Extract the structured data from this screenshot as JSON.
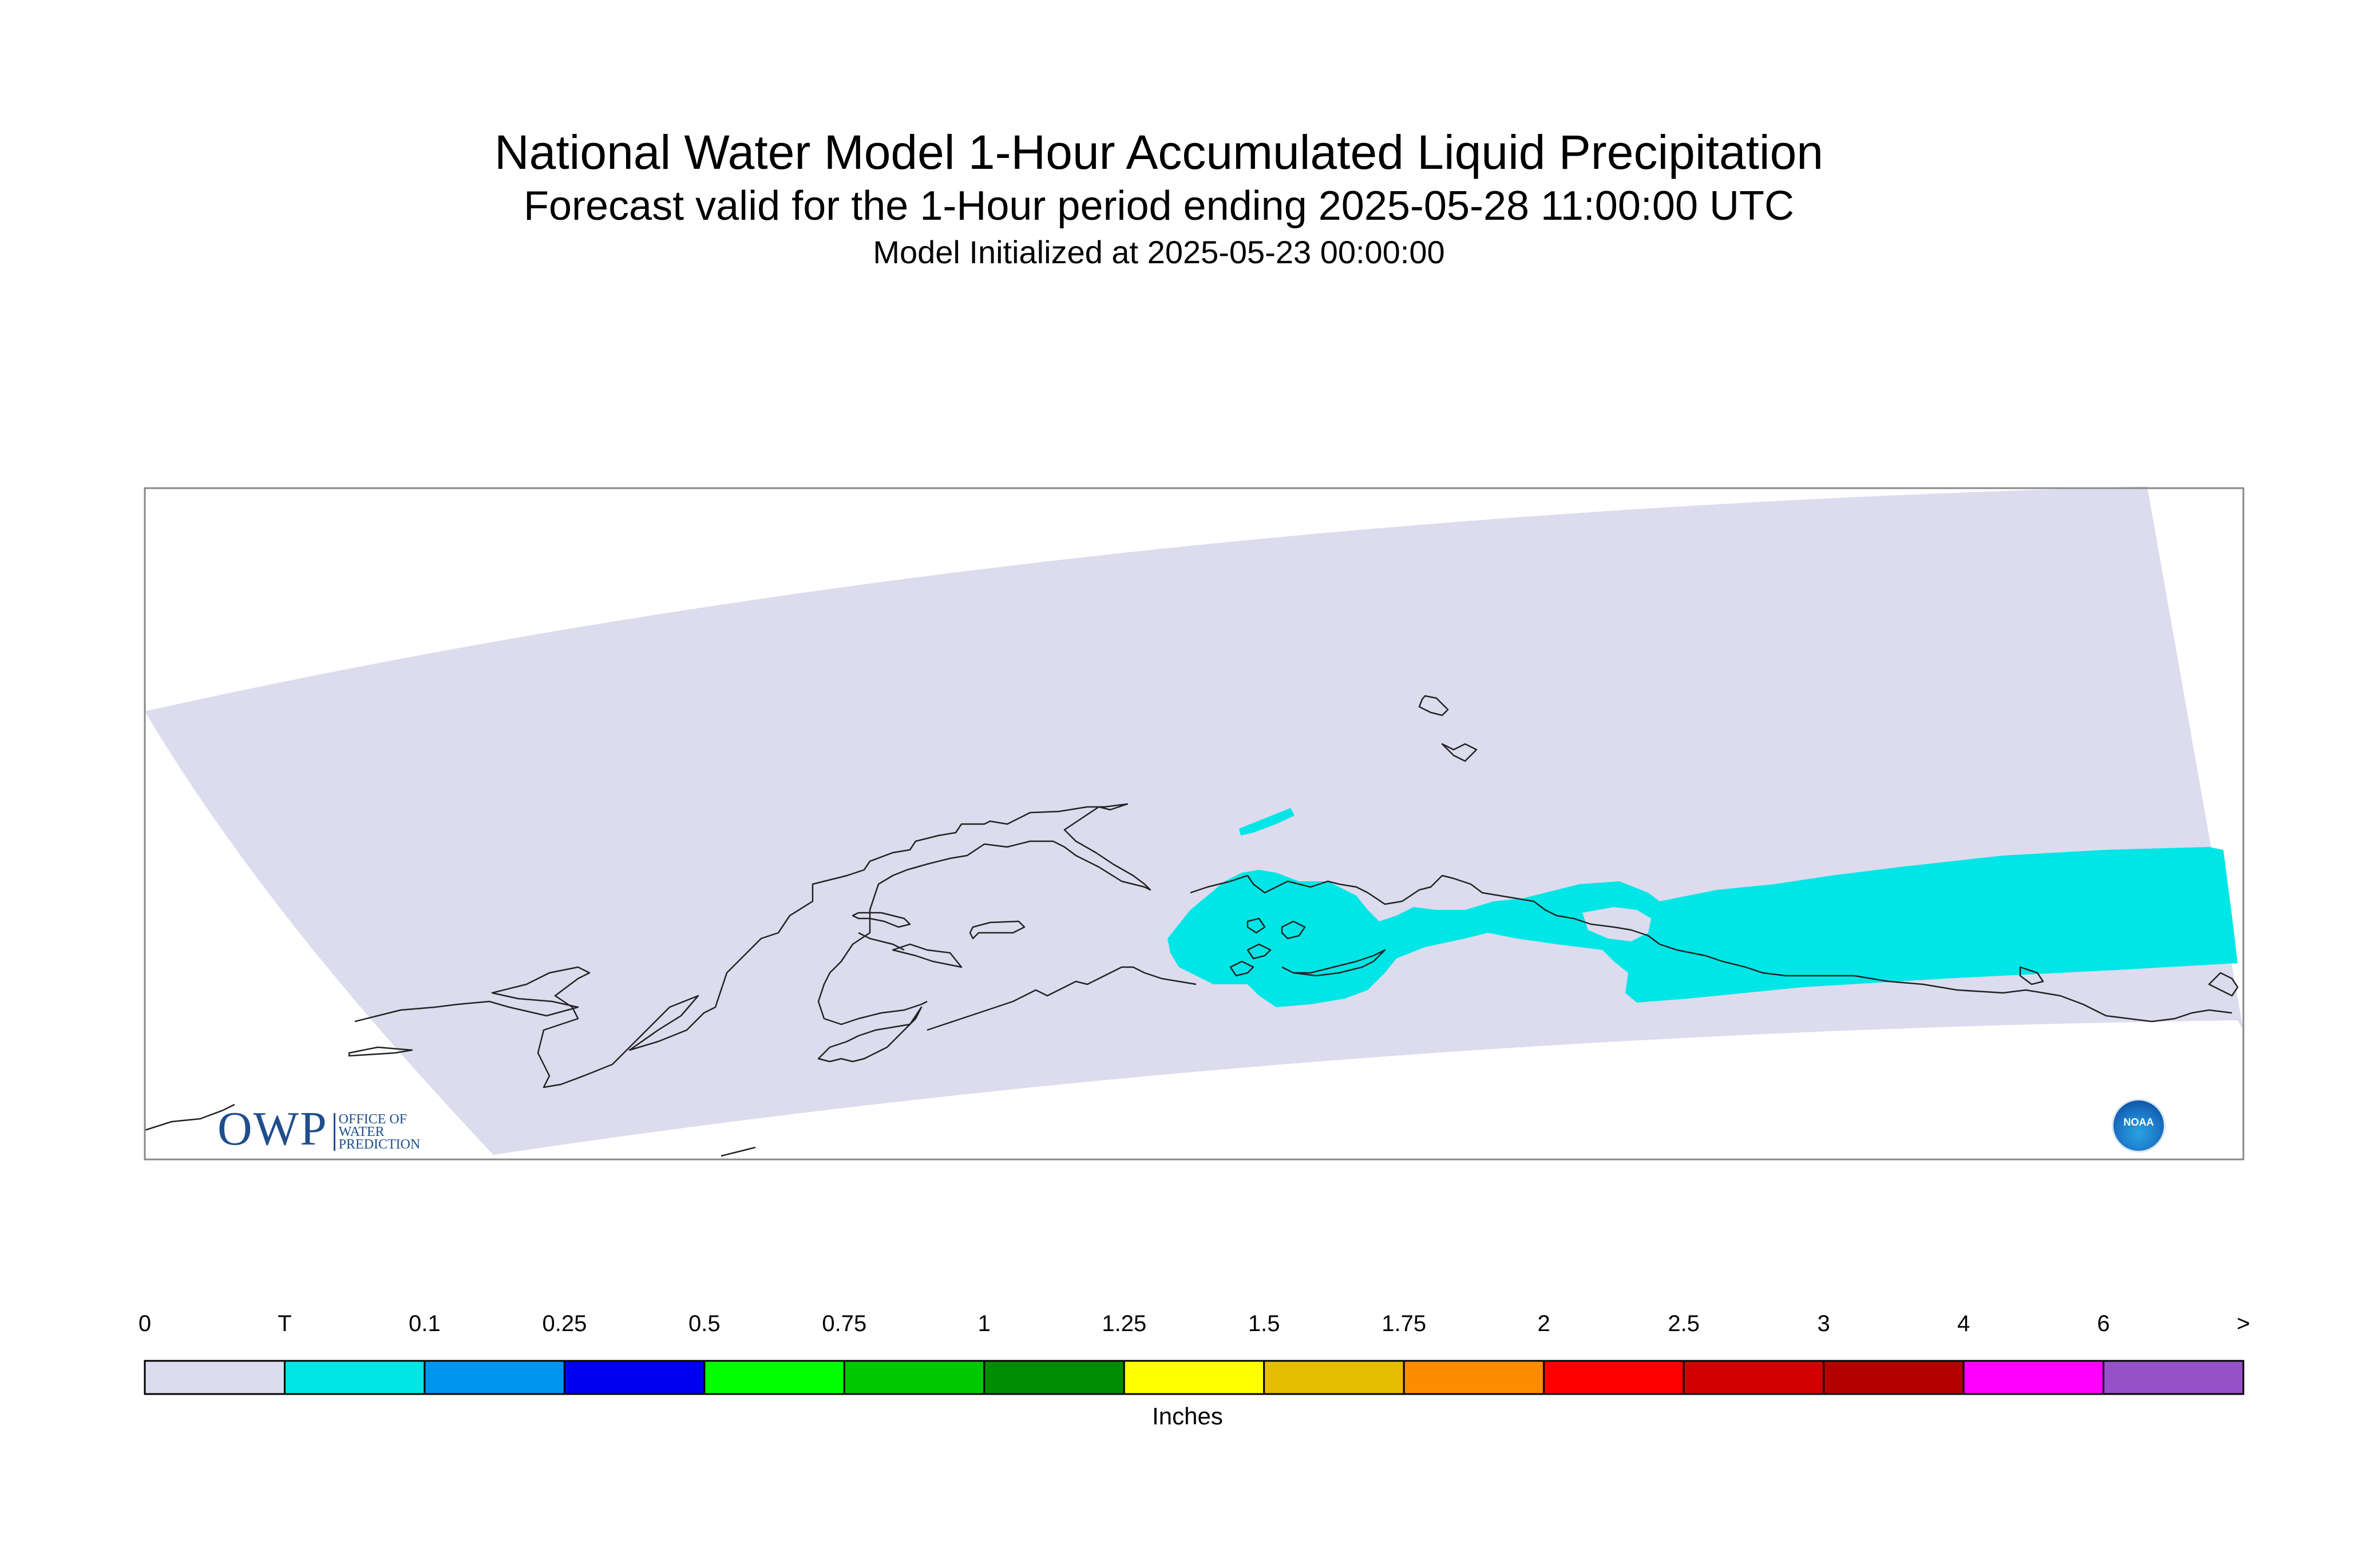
{
  "title": {
    "line1": "National Water Model 1-Hour Accumulated Liquid Precipitation",
    "line2": "Forecast valid for the 1-Hour period ending 2025-05-28 11:00:00 UTC",
    "line3": "Model Initialized at 2025-05-23 00:00:00"
  },
  "logos": {
    "owp_text": "OWP",
    "owp_subtext": [
      "OFFICE OF",
      "WATER",
      "PREDICTION"
    ],
    "noaa_text": "NOAA"
  },
  "map": {
    "domain_color": "#dcdcee",
    "precip_color": "#00e6e6",
    "coastline_color": "#222222",
    "precip_category": "T"
  },
  "colorbar": {
    "unit": "Inches",
    "tick_labels": [
      "0",
      "T",
      "0.1",
      "0.25",
      "0.5",
      "0.75",
      "1",
      "1.25",
      "1.5",
      "1.75",
      "2",
      "2.5",
      "3",
      "4",
      "6",
      ">"
    ],
    "colors": [
      "#dcdcee",
      "#00e6e6",
      "#0096f0",
      "#0000f0",
      "#00ff00",
      "#00c800",
      "#008c00",
      "#ffff00",
      "#e6be00",
      "#ff8c00",
      "#ff0000",
      "#d20000",
      "#b40000",
      "#ff00ff",
      "#9650c8"
    ]
  }
}
